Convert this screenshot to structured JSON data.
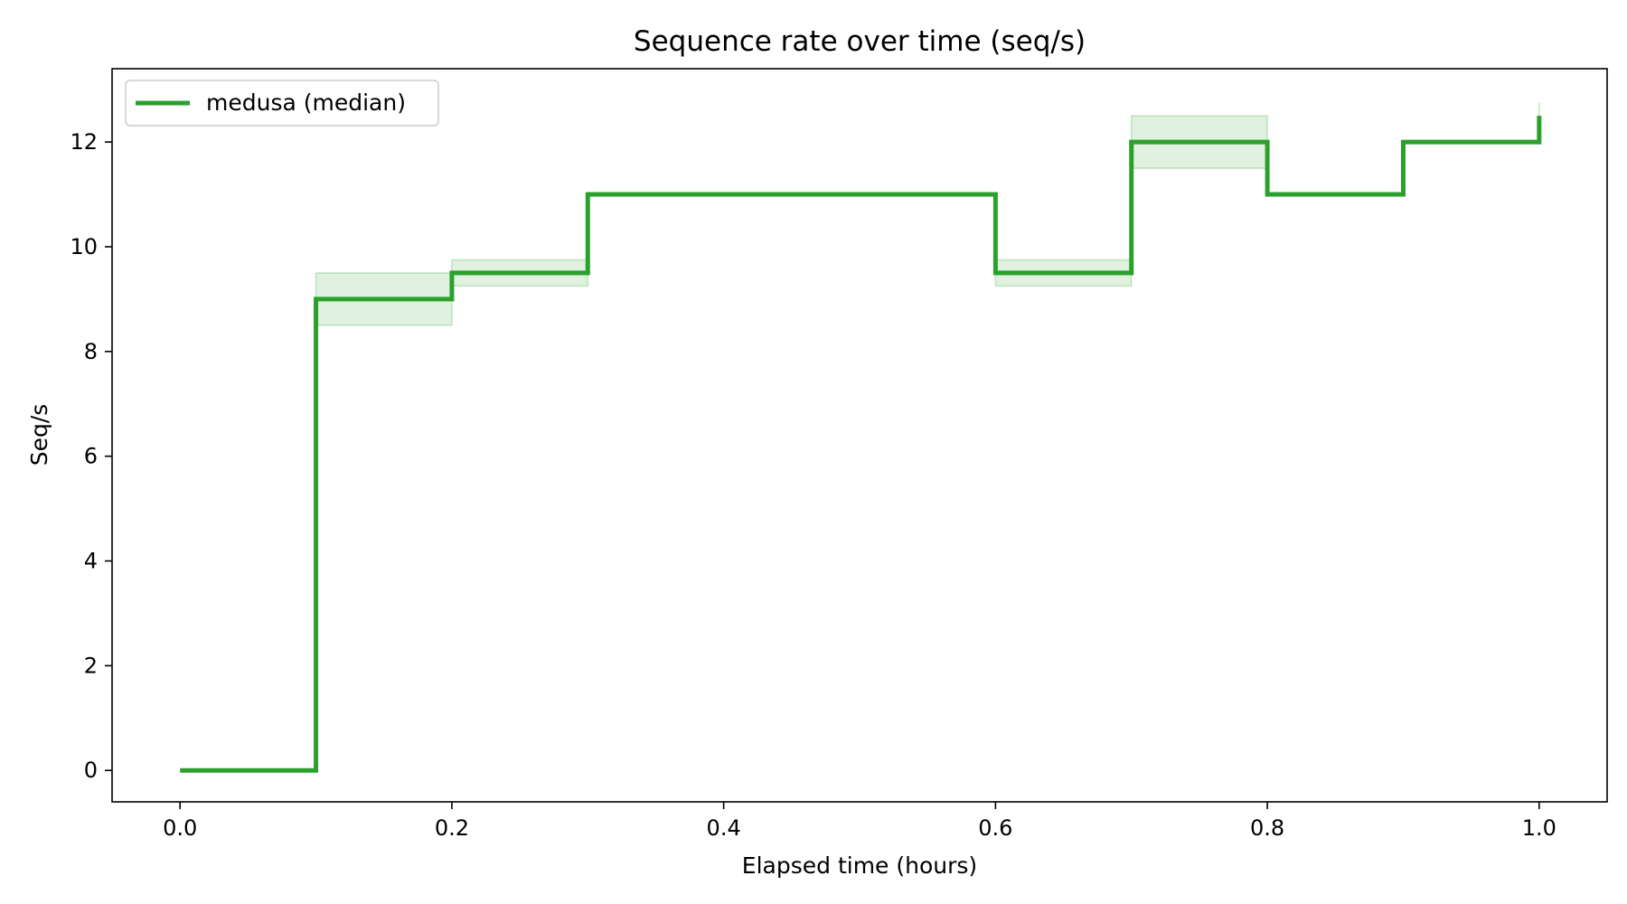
{
  "chart_data": {
    "type": "line",
    "title": "Sequence rate over time (seq/s)",
    "xlabel": "Elapsed time (hours)",
    "ylabel": "Seq/s",
    "xlim": [
      -0.05,
      1.05
    ],
    "ylim": [
      -0.6,
      13.4
    ],
    "x_ticks": [
      0.0,
      0.2,
      0.4,
      0.6,
      0.8,
      1.0
    ],
    "x_tick_labels": [
      "0.0",
      "0.2",
      "0.4",
      "0.6",
      "0.8",
      "1.0"
    ],
    "y_ticks": [
      0,
      2,
      4,
      6,
      8,
      10,
      12
    ],
    "y_tick_labels": [
      "0",
      "2",
      "4",
      "6",
      "8",
      "10",
      "12"
    ],
    "grid": false,
    "legend_position": "top-left",
    "series": [
      {
        "name": "medusa (median)",
        "color": "#2ca02c",
        "step": "post",
        "x": [
          0.0,
          0.1,
          0.2,
          0.3,
          0.4,
          0.5,
          0.6,
          0.7,
          0.8,
          0.9,
          1.0
        ],
        "values": [
          0,
          9,
          9.5,
          11,
          11,
          11,
          9.5,
          12,
          11,
          12,
          12.5
        ],
        "band_lower": [
          0,
          8.5,
          9.25,
          11,
          11,
          11,
          9.25,
          11.5,
          11,
          12,
          12.25
        ],
        "band_upper": [
          0,
          9.5,
          9.75,
          11,
          11,
          11,
          9.75,
          12.5,
          11,
          12,
          12.75
        ]
      }
    ]
  }
}
